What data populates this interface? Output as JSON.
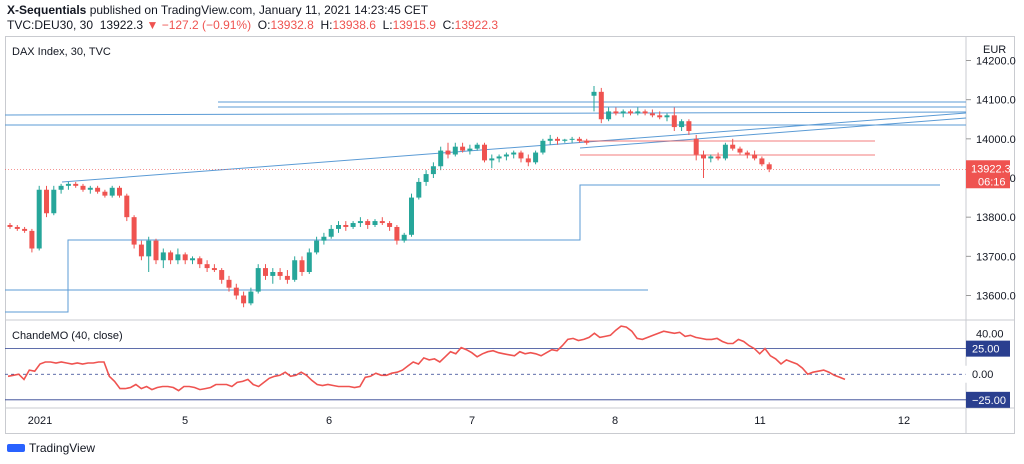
{
  "header": {
    "author": "X-Sequentials",
    "published_text": " published on TradingView.com, January 11, 2021 14:23:45 CET",
    "symbol": "TVC:DEU30, 30",
    "last": "13922.3",
    "change": "−127.2 (−0.91%)",
    "open_label": "O:",
    "open": "13932.8",
    "high_label": "H:",
    "high": "13938.6",
    "low_label": "L:",
    "low": "13915.9",
    "close_label": "C:",
    "close": "13922.3"
  },
  "chart_data": [
    {
      "type": "candlestick",
      "title": "DAX Index, 30, TVC",
      "currency": "EUR",
      "ylim": [
        13540,
        14260
      ],
      "yticks": [
        13600,
        13700,
        13800,
        13900,
        14000,
        14100,
        14200
      ],
      "ytick_labels": [
        "13600.0",
        "13700.0",
        "13800.0",
        "13900.0",
        "14000.0",
        "14100.0",
        "14200.0"
      ],
      "xticks": [
        "2021",
        "5",
        "6",
        "7",
        "8",
        "11",
        "12"
      ],
      "last_price_label": "13922.3",
      "countdown_label": "06:16",
      "candles": [
        [
          13780,
          13785,
          13770,
          13775
        ],
        [
          13775,
          13780,
          13765,
          13770
        ],
        [
          13770,
          13775,
          13760,
          13765
        ],
        [
          13765,
          13770,
          13710,
          13720
        ],
        [
          13720,
          13880,
          13715,
          13870
        ],
        [
          13870,
          13880,
          13800,
          13810
        ],
        [
          13810,
          13880,
          13805,
          13870
        ],
        [
          13870,
          13885,
          13860,
          13880
        ],
        [
          13880,
          13890,
          13870,
          13885
        ],
        [
          13885,
          13890,
          13875,
          13880
        ],
        [
          13880,
          13885,
          13865,
          13870
        ],
        [
          13870,
          13880,
          13860,
          13875
        ],
        [
          13875,
          13880,
          13860,
          13865
        ],
        [
          13865,
          13870,
          13850,
          13855
        ],
        [
          13855,
          13880,
          13850,
          13875
        ],
        [
          13875,
          13880,
          13850,
          13855
        ],
        [
          13855,
          13860,
          13790,
          13800
        ],
        [
          13800,
          13805,
          13720,
          13730
        ],
        [
          13730,
          13740,
          13690,
          13700
        ],
        [
          13700,
          13750,
          13660,
          13740
        ],
        [
          13740,
          13745,
          13680,
          13690
        ],
        [
          13690,
          13720,
          13670,
          13710
        ],
        [
          13710,
          13715,
          13680,
          13690
        ],
        [
          13690,
          13720,
          13680,
          13705
        ],
        [
          13705,
          13710,
          13680,
          13690
        ],
        [
          13690,
          13700,
          13680,
          13695
        ],
        [
          13695,
          13700,
          13670,
          13680
        ],
        [
          13680,
          13690,
          13660,
          13670
        ],
        [
          13670,
          13680,
          13660,
          13665
        ],
        [
          13665,
          13670,
          13630,
          13640
        ],
        [
          13640,
          13650,
          13610,
          13620
        ],
        [
          13620,
          13630,
          13590,
          13600
        ],
        [
          13600,
          13610,
          13570,
          13580
        ],
        [
          13580,
          13620,
          13575,
          13610
        ],
        [
          13610,
          13680,
          13605,
          13670
        ],
        [
          13670,
          13680,
          13640,
          13650
        ],
        [
          13650,
          13670,
          13630,
          13660
        ],
        [
          13660,
          13670,
          13640,
          13650
        ],
        [
          13650,
          13665,
          13630,
          13640
        ],
        [
          13640,
          13700,
          13635,
          13690
        ],
        [
          13690,
          13700,
          13650,
          13660
        ],
        [
          13660,
          13720,
          13655,
          13710
        ],
        [
          13710,
          13750,
          13705,
          13740
        ],
        [
          13740,
          13760,
          13730,
          13750
        ],
        [
          13750,
          13780,
          13745,
          13770
        ],
        [
          13770,
          13790,
          13760,
          13780
        ],
        [
          13780,
          13790,
          13765,
          13775
        ],
        [
          13775,
          13790,
          13770,
          13785
        ],
        [
          13785,
          13800,
          13775,
          13790
        ],
        [
          13790,
          13795,
          13770,
          13780
        ],
        [
          13780,
          13795,
          13775,
          13790
        ],
        [
          13790,
          13800,
          13780,
          13785
        ],
        [
          13785,
          13790,
          13765,
          13775
        ],
        [
          13775,
          13780,
          13730,
          13740
        ],
        [
          13740,
          13760,
          13735,
          13755
        ],
        [
          13755,
          13860,
          13750,
          13850
        ],
        [
          13850,
          13900,
          13845,
          13890
        ],
        [
          13890,
          13920,
          13880,
          13910
        ],
        [
          13910,
          13940,
          13900,
          13930
        ],
        [
          13930,
          13980,
          13920,
          13970
        ],
        [
          13970,
          13990,
          13950,
          13960
        ],
        [
          13960,
          13990,
          13955,
          13980
        ],
        [
          13980,
          13990,
          13965,
          13970
        ],
        [
          13970,
          13985,
          13960,
          13975
        ],
        [
          13975,
          13990,
          13970,
          13985
        ],
        [
          13985,
          13990,
          13940,
          13945
        ],
        [
          13945,
          13960,
          13925,
          13950
        ],
        [
          13950,
          13960,
          13940,
          13955
        ],
        [
          13955,
          13965,
          13945,
          13960
        ],
        [
          13960,
          13970,
          13950,
          13965
        ],
        [
          13965,
          13970,
          13940,
          13950
        ],
        [
          13950,
          13960,
          13930,
          13940
        ],
        [
          13940,
          13970,
          13935,
          13965
        ],
        [
          13965,
          14000,
          13960,
          13995
        ],
        [
          13995,
          14010,
          13985,
          14000
        ],
        [
          14000,
          14005,
          13985,
          13995
        ],
        [
          13995,
          14000,
          13990,
          13998
        ],
        [
          13998,
          14005,
          13990,
          14000
        ],
        [
          14000,
          14005,
          13990,
          13995
        ],
        [
          13995,
          14000,
          13985,
          13990
        ],
        [
          14110,
          14135,
          14070,
          14120
        ],
        [
          14120,
          14130,
          14040,
          14050
        ],
        [
          14050,
          14080,
          14045,
          14070
        ],
        [
          14070,
          14080,
          14060,
          14065
        ],
        [
          14065,
          14075,
          14055,
          14070
        ],
        [
          14070,
          14075,
          14060,
          14065
        ],
        [
          14065,
          14080,
          14060,
          14070
        ],
        [
          14070,
          14075,
          14060,
          14065
        ],
        [
          14065,
          14075,
          14055,
          14060
        ],
        [
          14060,
          14070,
          14050,
          14055
        ],
        [
          14055,
          14065,
          14045,
          14060
        ],
        [
          14060,
          14080,
          14020,
          14030
        ],
        [
          14030,
          14050,
          14020,
          14045
        ],
        [
          14045,
          14050,
          14010,
          14020
        ],
        [
          14000,
          14010,
          13945,
          13960
        ],
        [
          13960,
          13970,
          13900,
          13950
        ],
        [
          13950,
          13960,
          13940,
          13955
        ],
        [
          13955,
          13965,
          13945,
          13950
        ],
        [
          13950,
          13990,
          13945,
          13985
        ],
        [
          13985,
          14000,
          13970,
          13975
        ],
        [
          13975,
          13980,
          13960,
          13965
        ],
        [
          13965,
          13970,
          13950,
          13960
        ],
        [
          13960,
          13970,
          13945,
          13950
        ],
        [
          13950,
          13955,
          13930,
          13935
        ],
        [
          13935,
          13940,
          13915,
          13922.3
        ]
      ]
    },
    {
      "type": "line",
      "title": "ChandeMO (40, close)",
      "ylim": [
        -32,
        52
      ],
      "yticks": [
        40
      ],
      "ytick_labels": [
        "40.00"
      ],
      "levels": [
        {
          "value": 25,
          "label": "25.00",
          "color": "#2a3f8f"
        },
        {
          "value": 0,
          "label": "0.00",
          "color": "#ffffff"
        },
        {
          "value": -25,
          "label": "−25.00",
          "color": "#2a3f8f"
        }
      ],
      "series": [
        {
          "color": "#ef5350",
          "values": [
            -2,
            -1,
            0,
            -5,
            4,
            3,
            10,
            12,
            12,
            11,
            12,
            11,
            10,
            11,
            10,
            11,
            11,
            12,
            12,
            -2,
            -7,
            -14,
            -14,
            -13,
            -10,
            -14,
            -12,
            -15,
            -13,
            -12,
            -12,
            -13,
            -16,
            -12,
            -12,
            -13,
            -15,
            -14,
            -13,
            -10,
            -10,
            -10,
            -12,
            -8,
            -7,
            -5,
            -10,
            -12,
            -8,
            -4,
            -2,
            -1,
            2,
            -2,
            -1,
            2,
            -1,
            -6,
            -10,
            -11,
            -10,
            -11,
            -12,
            -12,
            -12,
            -13,
            -12,
            -3,
            -2,
            1,
            -1,
            -1,
            1,
            2,
            4,
            8,
            12,
            10,
            16,
            14,
            15,
            12,
            17,
            22,
            20,
            26,
            24,
            21,
            17,
            20,
            22,
            23,
            21,
            20,
            19,
            18,
            22,
            20,
            21,
            20,
            18,
            21,
            24,
            23,
            28,
            34,
            35,
            33,
            34,
            36,
            40,
            36,
            37,
            38,
            43,
            47,
            46,
            42,
            35,
            34,
            36,
            38,
            40,
            42,
            41,
            40,
            41,
            37,
            38,
            36,
            35,
            34,
            34,
            35,
            32,
            30,
            30,
            34,
            32,
            28,
            25,
            20,
            25,
            18,
            15,
            10,
            14,
            12,
            10,
            6,
            0,
            2,
            3,
            4,
            2,
            -1,
            -3,
            -5
          ]
        }
      ]
    }
  ],
  "footer": {
    "brand": "TradingView"
  }
}
